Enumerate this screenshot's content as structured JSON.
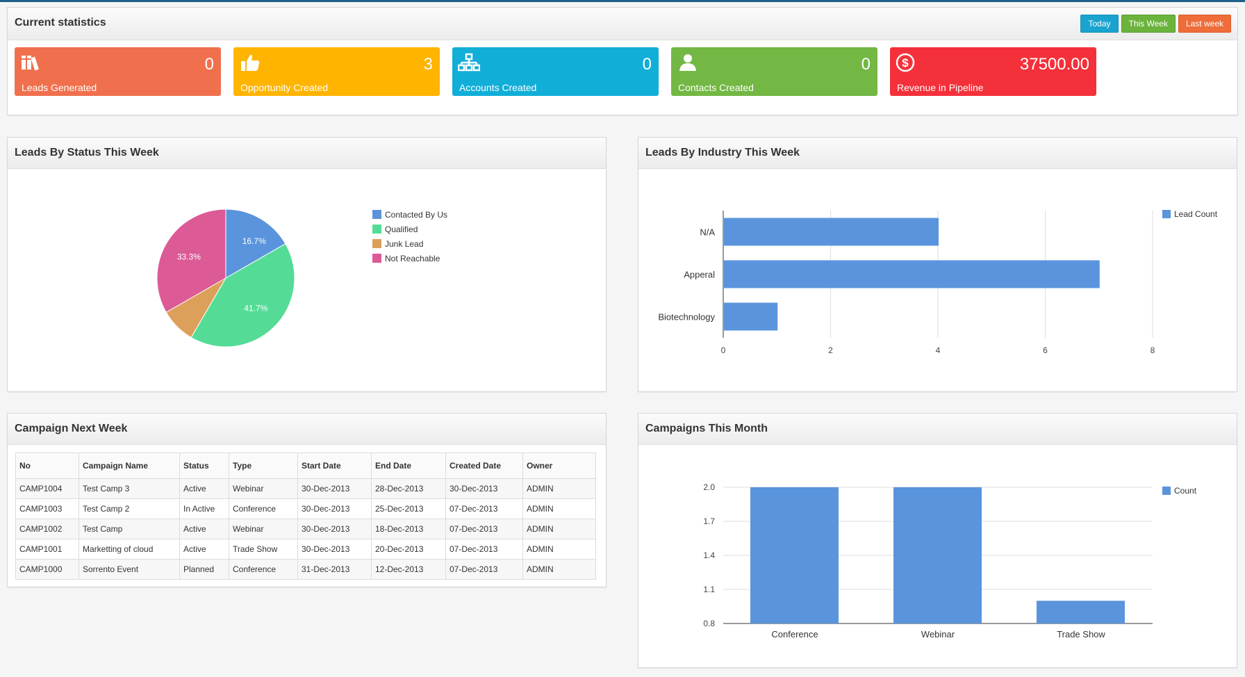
{
  "stats": {
    "title": "Current statistics",
    "buttons": {
      "today": "Today",
      "this_week": "This Week",
      "last_week": "Last week"
    },
    "tiles": [
      {
        "value": "0",
        "label": "Leads Generated",
        "color": "#f0704d",
        "icon": "books-icon"
      },
      {
        "value": "3",
        "label": "Opportunity Created",
        "color": "#ffb400",
        "icon": "thumbs-up-icon"
      },
      {
        "value": "0",
        "label": "Accounts Created",
        "color": "#11aed8",
        "icon": "org-chart-icon"
      },
      {
        "value": "0",
        "label": "Contacts Created",
        "color": "#73b744",
        "icon": "user-icon"
      },
      {
        "value": "37500.00",
        "label": "Revenue in Pipeline",
        "color": "#f4303a",
        "icon": "dollar-circle-icon"
      }
    ]
  },
  "leads_status": {
    "title": "Leads By Status This Week",
    "chart_data": {
      "type": "pie",
      "slices": [
        {
          "label": "Contacted By Us",
          "value": 16.7,
          "display": "16.7%",
          "color": "#5a94dc"
        },
        {
          "label": "Qualified",
          "value": 41.7,
          "display": "41.7%",
          "color": "#54dc96"
        },
        {
          "label": "Junk Lead",
          "value": 8.3,
          "display": "",
          "color": "#dca05a"
        },
        {
          "label": "Not Reachable",
          "value": 33.3,
          "display": "33.3%",
          "color": "#dc5a96"
        }
      ],
      "legend_position": "right"
    }
  },
  "leads_industry": {
    "title": "Leads By Industry This Week",
    "chart_data": {
      "type": "bar",
      "orientation": "horizontal",
      "categories": [
        "N/A",
        "Apperal",
        "Biotechnology"
      ],
      "series": [
        {
          "name": "Lead Count",
          "values": [
            4,
            7,
            1
          ],
          "color": "#5a94dc"
        }
      ],
      "xlim": [
        0,
        8
      ],
      "ticks": [
        "0",
        "2",
        "4",
        "6",
        "8"
      ],
      "grid": true,
      "legend_position": "top-right"
    }
  },
  "campaign_next_week": {
    "title": "Campaign Next Week",
    "columns": [
      "No",
      "Campaign Name",
      "Status",
      "Type",
      "Start Date",
      "End Date",
      "Created Date",
      "Owner"
    ],
    "rows": [
      [
        "CAMP1004",
        "Test Camp 3",
        "Active",
        "Webinar",
        "30-Dec-2013",
        "28-Dec-2013",
        "30-Dec-2013",
        "ADMIN"
      ],
      [
        "CAMP1003",
        "Test Camp 2",
        "In Active",
        "Conference",
        "30-Dec-2013",
        "25-Dec-2013",
        "07-Dec-2013",
        "ADMIN"
      ],
      [
        "CAMP1002",
        "Test Camp",
        "Active",
        "Webinar",
        "30-Dec-2013",
        "18-Dec-2013",
        "07-Dec-2013",
        "ADMIN"
      ],
      [
        "CAMP1001",
        "Marketting of cloud",
        "Active",
        "Trade Show",
        "30-Dec-2013",
        "20-Dec-2013",
        "07-Dec-2013",
        "ADMIN"
      ],
      [
        "CAMP1000",
        "Sorrento Event",
        "Planned",
        "Conference",
        "31-Dec-2013",
        "12-Dec-2013",
        "07-Dec-2013",
        "ADMIN"
      ]
    ]
  },
  "campaigns_month": {
    "title": "Campaigns This Month",
    "chart_data": {
      "type": "bar",
      "orientation": "vertical",
      "categories": [
        "Conference",
        "Webinar",
        "Trade Show"
      ],
      "series": [
        {
          "name": "Count",
          "values": [
            2,
            2,
            1
          ],
          "color": "#5a94dc"
        }
      ],
      "ylim": [
        0.8,
        2.0
      ],
      "ticks": [
        "2.0",
        "1.7",
        "1.4",
        "1.1",
        "0.8"
      ],
      "grid": true,
      "legend_position": "top-right"
    }
  }
}
